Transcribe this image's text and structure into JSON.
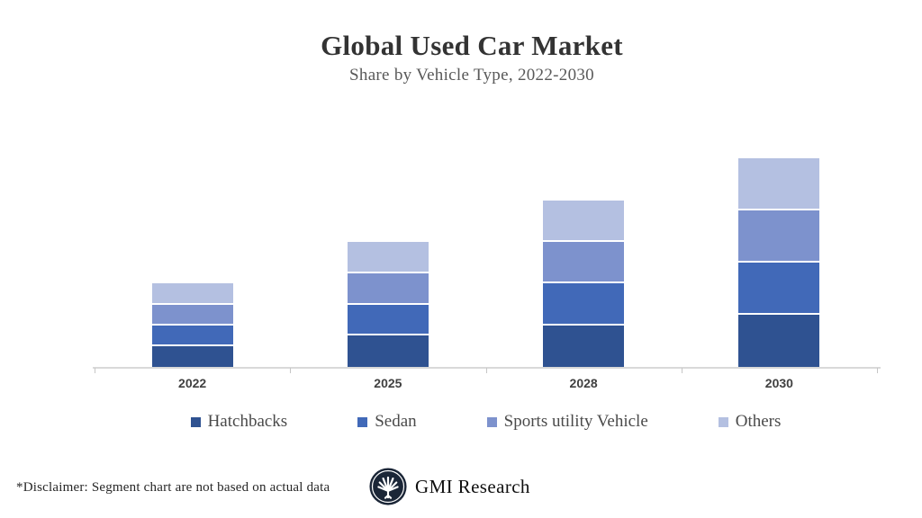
{
  "chart_data": {
    "type": "bar",
    "stacked": true,
    "title": "Global Used Car Market",
    "subtitle": "Share by Vehicle Type, 2022-2030",
    "categories": [
      "2022",
      "2025",
      "2028",
      "2030"
    ],
    "series": [
      {
        "name": "Hatchbacks",
        "color": "#2F5291",
        "values": [
          1,
          1.5,
          2,
          2.5
        ]
      },
      {
        "name": "Sedan",
        "color": "#4169B8",
        "values": [
          1,
          1.5,
          2,
          2.5
        ]
      },
      {
        "name": "Sports utility Vehicle",
        "color": "#7D92CD",
        "values": [
          1,
          1.5,
          2,
          2.5
        ]
      },
      {
        "name": "Others",
        "color": "#B4C0E1",
        "values": [
          1,
          1.5,
          2,
          2.5
        ]
      }
    ],
    "stack_totals": [
      4,
      6,
      8,
      10
    ],
    "xlabel": "",
    "ylabel": "",
    "ylim": [
      0,
      12
    ],
    "y_axis_visible": false,
    "gridlines": false,
    "legend_position": "bottom"
  },
  "footer": {
    "disclaimer": "*Disclaimer:  Segment chart are not based on actual data",
    "brand": "GMI Research"
  }
}
